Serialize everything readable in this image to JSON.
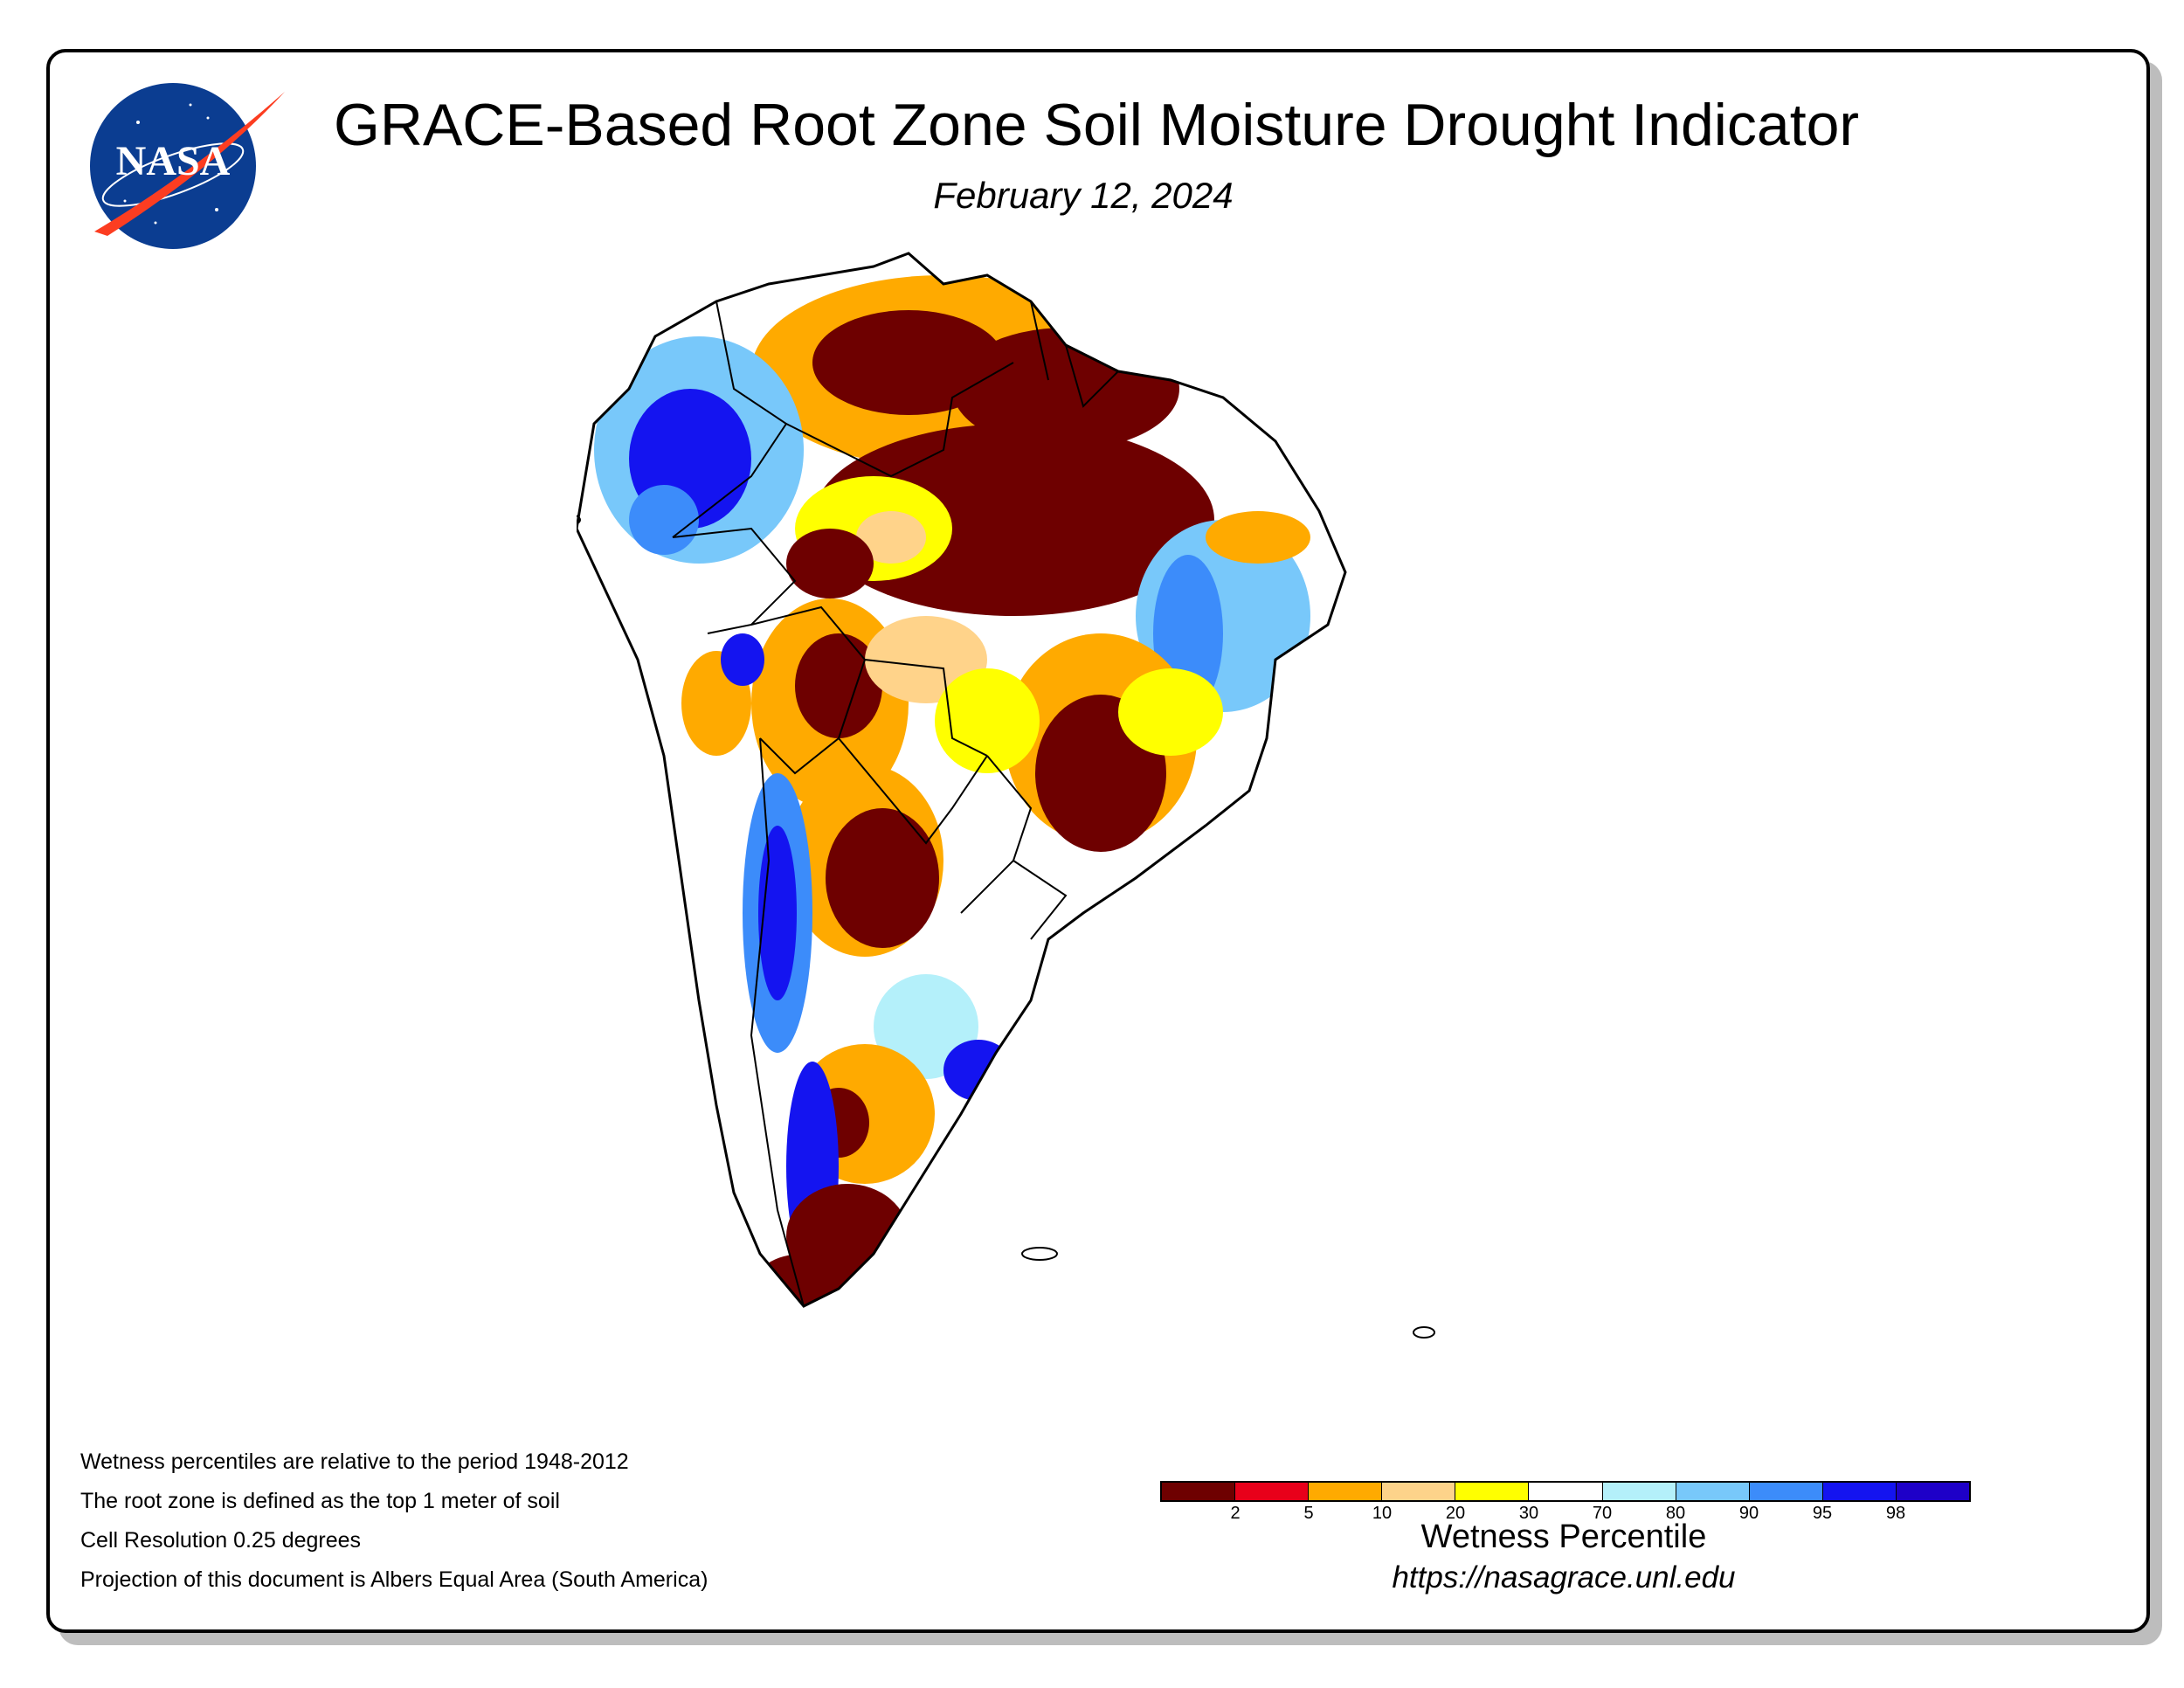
{
  "header": {
    "logo_text": "NASA",
    "title": "GRACE-Based Root Zone Soil Moisture Drought Indicator",
    "date": "February 12, 2024"
  },
  "map": {
    "region": "South America",
    "colors": {
      "extreme_dry": "#6e0000",
      "very_dry": "#e8001a",
      "dry": "#ffaa00",
      "moderate_dry": "#fdd38a",
      "slight_dry": "#ffff00",
      "normal": "#ffffff",
      "slight_wet": "#b4f0fa",
      "wet": "#78c8fa",
      "very_wet": "#3c8cfa",
      "extreme_wet": "#1414f0",
      "exceptional_wet": "#1e00c8",
      "outline": "#000000"
    }
  },
  "notes": [
    "Wetness percentiles are relative to the period 1948-2012",
    "The root zone is defined as the top 1 meter of soil",
    "Cell Resolution 0.25 degrees",
    "Projection of this document is Albers Equal Area (South America)"
  ],
  "legend": {
    "title": "Wetness Percentile",
    "bins": [
      {
        "color": "#6e0000"
      },
      {
        "color": "#e8001a"
      },
      {
        "color": "#ffaa00"
      },
      {
        "color": "#fdd38a"
      },
      {
        "color": "#ffff00"
      },
      {
        "color": "#ffffff"
      },
      {
        "color": "#b4f0fa"
      },
      {
        "color": "#78c8fa"
      },
      {
        "color": "#3c8cfa"
      },
      {
        "color": "#1414f0"
      },
      {
        "color": "#1e00c8"
      }
    ],
    "ticks": [
      "2",
      "5",
      "10",
      "20",
      "30",
      "70",
      "80",
      "90",
      "95",
      "98"
    ]
  },
  "footer": {
    "url": "https://nasagrace.unl.edu"
  }
}
